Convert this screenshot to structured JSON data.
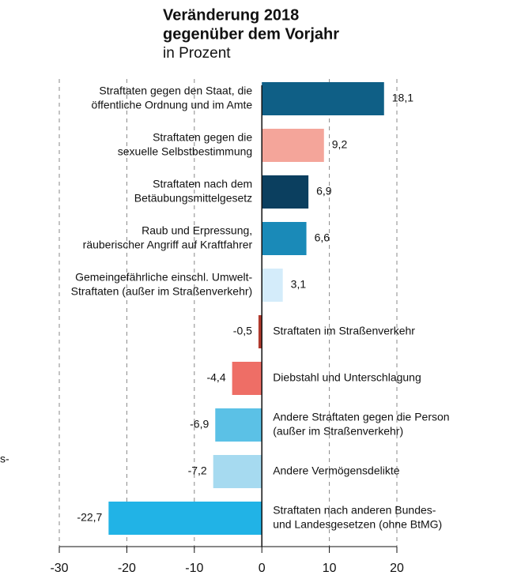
{
  "chart_data": {
    "type": "bar",
    "orientation": "horizontal",
    "title": [
      "Veränderung 2018",
      "gegenüber dem Vorjahr"
    ],
    "subtitle": "in Prozent",
    "annotation": "s-",
    "categories": [
      [
        "Straftaten gegen den Staat, die",
        "öffentliche Ordnung und im Amte"
      ],
      [
        "Straftaten gegen die",
        "sexuelle Selbstbestimmung"
      ],
      [
        "Straftaten nach dem",
        "Betäubungsmittelgesetz"
      ],
      [
        "Raub und Erpressung,",
        "räuberischer Angriff auf Kraftfahrer"
      ],
      [
        "Gemeingefährliche einschl. Umwelt-",
        "Straftaten (außer im Straßenverkehr)"
      ],
      [
        "Straftaten im Straßenverkehr"
      ],
      [
        "Diebstahl und Unterschlagung"
      ],
      [
        "Andere Straftaten gegen die Person",
        "(außer im Straßenverkehr)"
      ],
      [
        "Andere Vermögensdelikte"
      ],
      [
        "Straftaten nach anderen Bundes-",
        "und Landesgesetzen (ohne BtMG)"
      ]
    ],
    "values": [
      18.1,
      9.2,
      6.9,
      6.6,
      3.1,
      -0.5,
      -4.4,
      -6.9,
      -7.2,
      -22.7
    ],
    "value_labels": [
      "18,1",
      "9,2",
      "6,9",
      "6,6",
      "3,1",
      "-0,5",
      "-4,4",
      "-6,9",
      "-7,2",
      "-22,7"
    ],
    "colors": [
      "#0f5f86",
      "#f4a59a",
      "#0b3f5f",
      "#1a8ab8",
      "#d4ecfa",
      "#b03a2e",
      "#ee6e66",
      "#5bc1e6",
      "#a6daf0",
      "#21b3e6"
    ],
    "xlim": [
      -30,
      20
    ],
    "xticks": [
      -30,
      -20,
      -10,
      0,
      10,
      20
    ],
    "grid": true
  }
}
